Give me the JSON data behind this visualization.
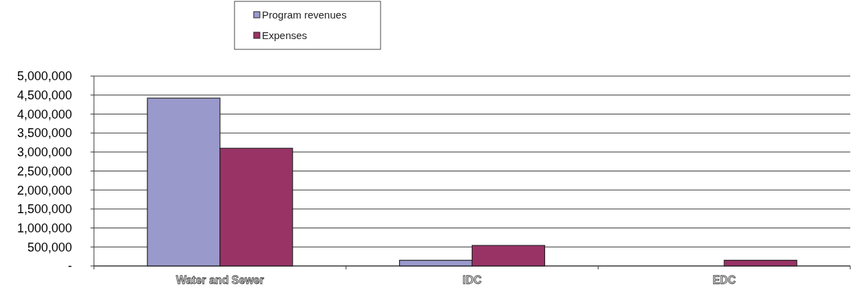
{
  "chart_data": {
    "type": "bar",
    "categories": [
      "Water and Sewer",
      "IDC",
      "EDC"
    ],
    "series": [
      {
        "name": "Program revenues",
        "color": "#9999cc",
        "values": [
          4420000,
          150000,
          0
        ]
      },
      {
        "name": "Expenses",
        "color": "#993366",
        "values": [
          3100000,
          540000,
          150000
        ]
      }
    ],
    "ylim": [
      0,
      5000000
    ],
    "yticks": [
      {
        "value": 0,
        "label": "-"
      },
      {
        "value": 500000,
        "label": "500,000"
      },
      {
        "value": 1000000,
        "label": "1,000,000"
      },
      {
        "value": 1500000,
        "label": "1,500,000"
      },
      {
        "value": 2000000,
        "label": "2,000,000"
      },
      {
        "value": 2500000,
        "label": "2,500,000"
      },
      {
        "value": 3000000,
        "label": "3,000,000"
      },
      {
        "value": 3500000,
        "label": "3,500,000"
      },
      {
        "value": 4000000,
        "label": "4,000,000"
      },
      {
        "value": 4500000,
        "label": "4,500,000"
      },
      {
        "value": 5000000,
        "label": "5,000,000"
      }
    ],
    "grid": "y",
    "legend": "top"
  }
}
